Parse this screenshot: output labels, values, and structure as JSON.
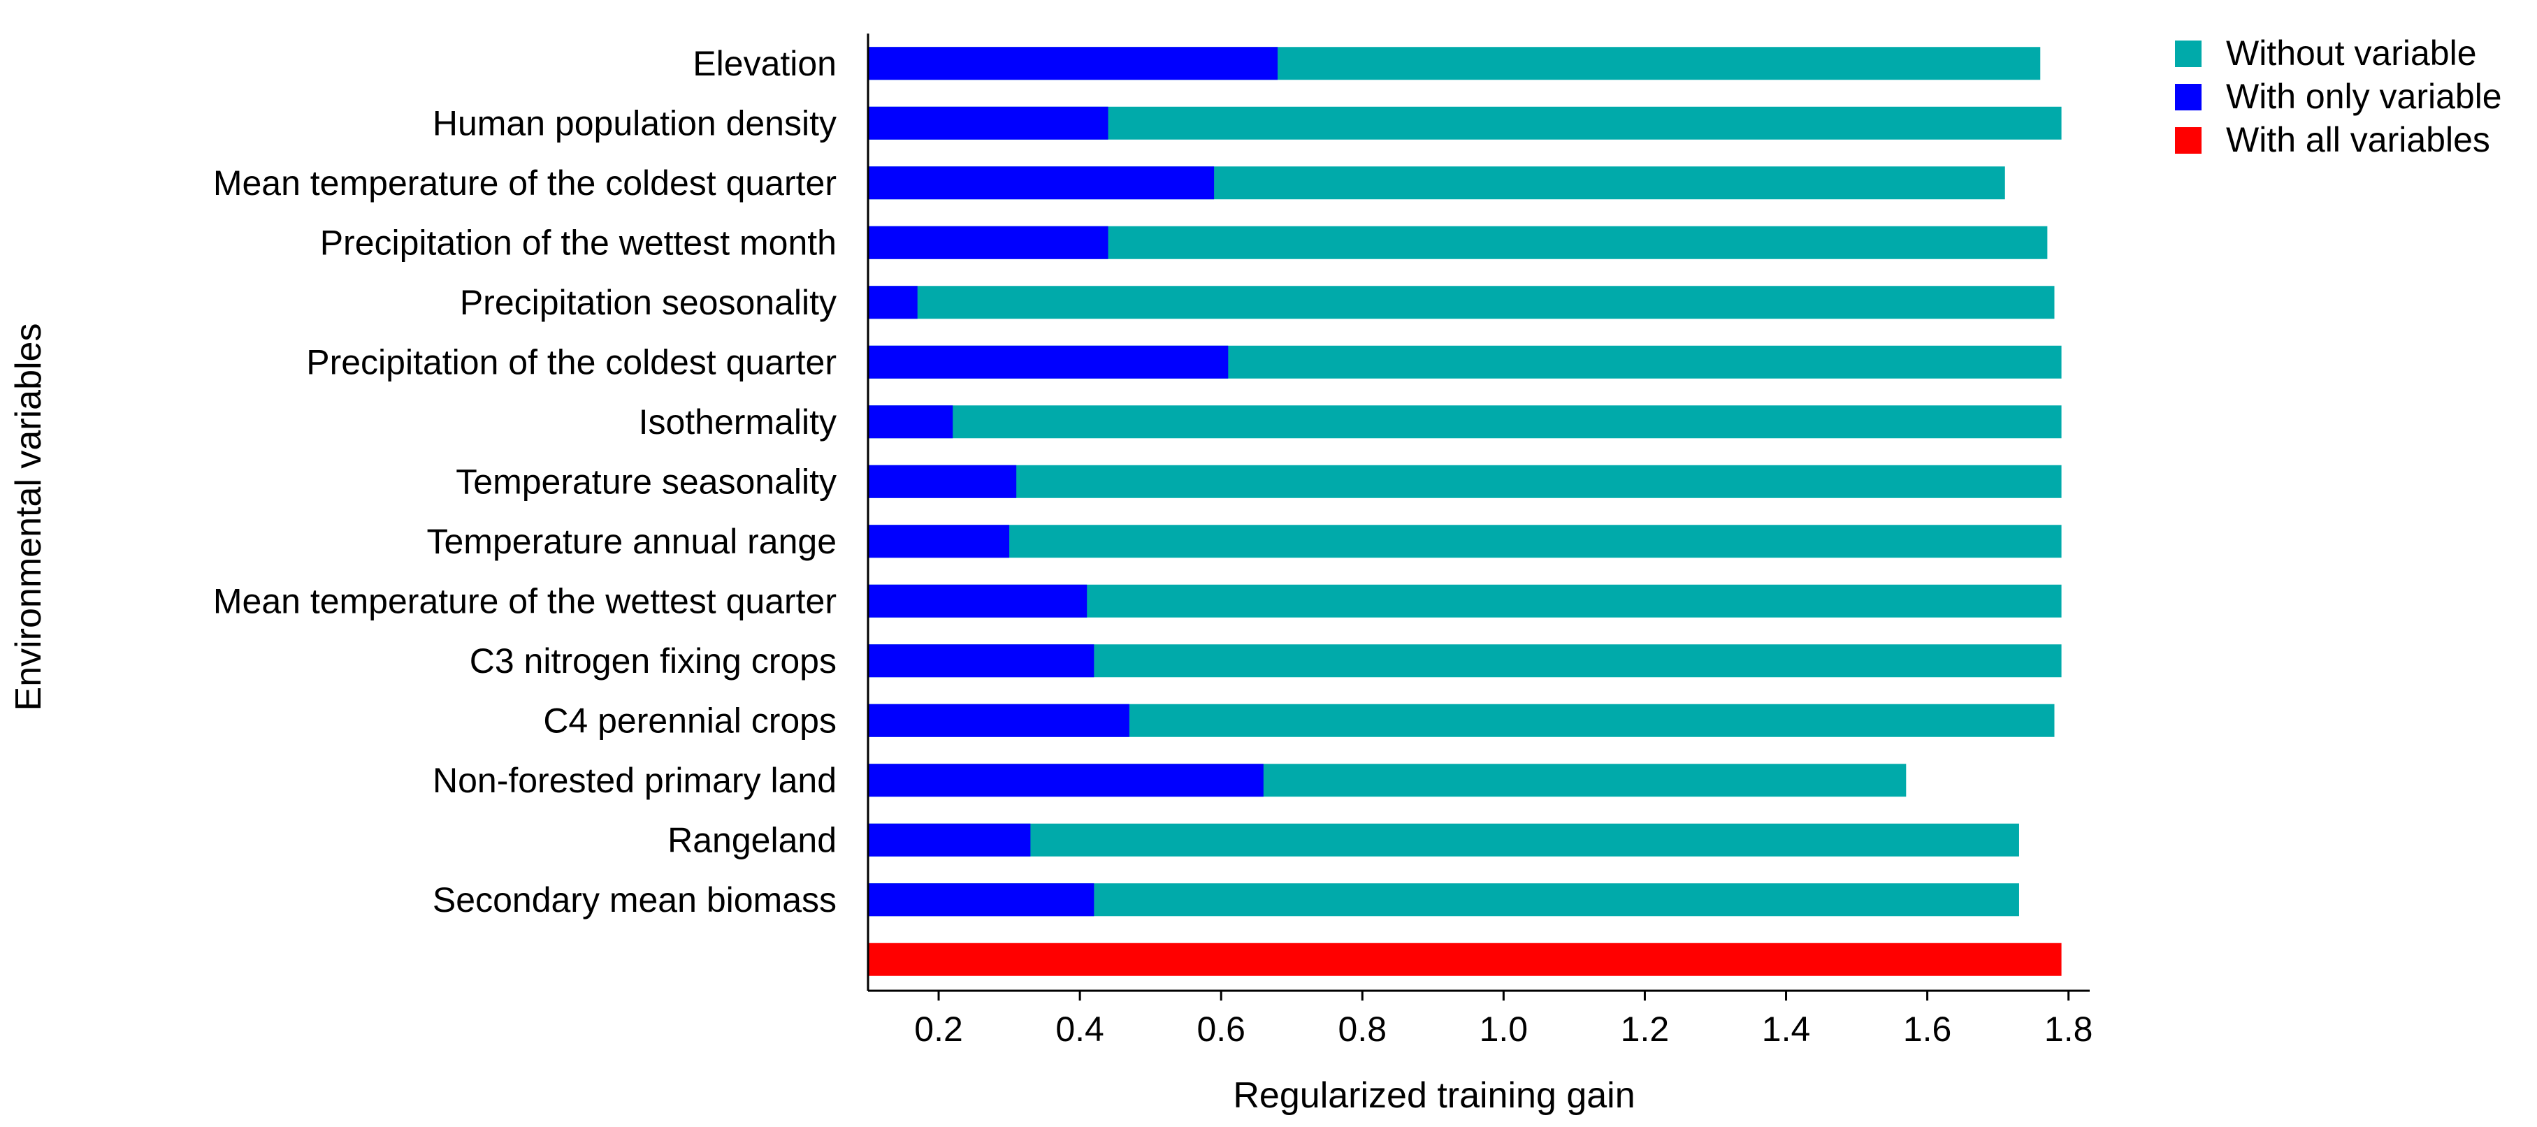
{
  "chart_data": {
    "type": "bar",
    "orientation": "horizontal",
    "xlabel": "Regularized training gain",
    "ylabel": "Environmental variables",
    "xlim": [
      0.1,
      1.83
    ],
    "xticks": [
      "0.2",
      "0.4",
      "0.6",
      "0.8",
      "1.0",
      "1.2",
      "1.4",
      "1.6",
      "1.8"
    ],
    "xtick_values": [
      0.2,
      0.4,
      0.6,
      0.8,
      1.0,
      1.2,
      1.4,
      1.6,
      1.8
    ],
    "grid": false,
    "legend_position": "top-right",
    "colors": {
      "without": "#00AAAA",
      "with_only": "#0000FF",
      "with_all": "#FF0000"
    },
    "legend": [
      {
        "label": "Without variable",
        "key": "without"
      },
      {
        "label": "With only variable",
        "key": "with_only"
      },
      {
        "label": "With all variables",
        "key": "with_all"
      }
    ],
    "categories": [
      "Elevation",
      "Human population density",
      "Mean temperature of the coldest quarter",
      "Precipitation of the wettest month",
      "Precipitation seosonality",
      "Precipitation of the coldest quarter",
      "Isothermality",
      "Temperature seasonality",
      "Temperature annual range",
      "Mean temperature of the wettest quarter",
      "C3 nitrogen fixing crops",
      "C4 perennial crops",
      "Non-forested primary land",
      "Rangeland",
      "Secondary mean biomass"
    ],
    "series": [
      {
        "name": "Without variable",
        "values": [
          1.76,
          1.79,
          1.71,
          1.77,
          1.78,
          1.79,
          1.79,
          1.79,
          1.79,
          1.79,
          1.79,
          1.78,
          1.57,
          1.73,
          1.73
        ]
      },
      {
        "name": "With only variable",
        "values": [
          0.68,
          0.44,
          0.59,
          0.44,
          0.17,
          0.61,
          0.22,
          0.31,
          0.3,
          0.41,
          0.42,
          0.47,
          0.66,
          0.33,
          0.42
        ]
      }
    ],
    "with_all_value": 1.79
  }
}
